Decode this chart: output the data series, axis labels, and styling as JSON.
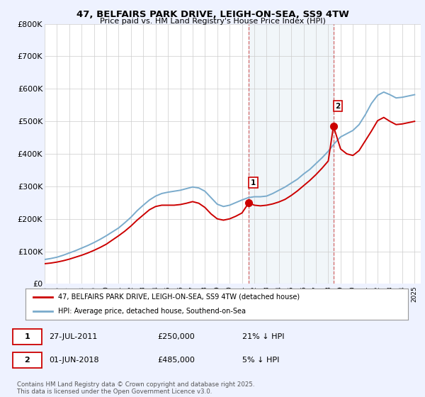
{
  "title": "47, BELFAIRS PARK DRIVE, LEIGH-ON-SEA, SS9 4TW",
  "subtitle": "Price paid vs. HM Land Registry's House Price Index (HPI)",
  "ylim": [
    0,
    800000
  ],
  "yticks": [
    0,
    100000,
    200000,
    300000,
    400000,
    500000,
    600000,
    700000,
    800000
  ],
  "ytick_labels": [
    "£0",
    "£100K",
    "£200K",
    "£300K",
    "£400K",
    "£500K",
    "£600K",
    "£700K",
    "£800K"
  ],
  "xlim_start": 1995.0,
  "xlim_end": 2025.5,
  "background_color": "#eef2ff",
  "plot_bg_color": "#ffffff",
  "sale1_year": 2011.57,
  "sale1_price": 250000,
  "sale2_year": 2018.42,
  "sale2_price": 485000,
  "vline1_x": 2011.57,
  "vline2_x": 2018.42,
  "red_color": "#cc0000",
  "blue_color": "#7aabcc",
  "legend_label_red": "47, BELFAIRS PARK DRIVE, LEIGH-ON-SEA, SS9 4TW (detached house)",
  "legend_label_blue": "HPI: Average price, detached house, Southend-on-Sea",
  "footnote": "Contains HM Land Registry data © Crown copyright and database right 2025.\nThis data is licensed under the Open Government Licence v3.0.",
  "hpi_years": [
    1995,
    1995.5,
    1996,
    1996.5,
    1997,
    1997.5,
    1998,
    1998.5,
    1999,
    1999.5,
    2000,
    2000.5,
    2001,
    2001.5,
    2002,
    2002.5,
    2003,
    2003.5,
    2004,
    2004.5,
    2005,
    2005.5,
    2006,
    2006.5,
    2007,
    2007.5,
    2008,
    2008.5,
    2009,
    2009.5,
    2010,
    2010.5,
    2011,
    2011.5,
    2012,
    2012.5,
    2013,
    2013.5,
    2014,
    2014.5,
    2015,
    2015.5,
    2016,
    2016.5,
    2017,
    2017.5,
    2018,
    2018.5,
    2019,
    2019.5,
    2020,
    2020.5,
    2021,
    2021.5,
    2022,
    2022.5,
    2023,
    2023.5,
    2024,
    2024.5,
    2025
  ],
  "hpi_values": [
    75000,
    78000,
    82000,
    88000,
    95000,
    102000,
    110000,
    118000,
    127000,
    137000,
    148000,
    160000,
    172000,
    188000,
    205000,
    225000,
    242000,
    258000,
    270000,
    278000,
    282000,
    285000,
    288000,
    293000,
    298000,
    295000,
    285000,
    265000,
    245000,
    238000,
    242000,
    250000,
    258000,
    265000,
    268000,
    268000,
    270000,
    278000,
    288000,
    298000,
    310000,
    322000,
    338000,
    352000,
    370000,
    388000,
    408000,
    432000,
    452000,
    462000,
    472000,
    490000,
    520000,
    555000,
    580000,
    590000,
    582000,
    572000,
    574000,
    578000,
    582000
  ],
  "price_years": [
    1995,
    1995.5,
    1996,
    1996.5,
    1997,
    1997.5,
    1998,
    1998.5,
    1999,
    1999.5,
    2000,
    2000.5,
    2001,
    2001.5,
    2002,
    2002.5,
    2003,
    2003.5,
    2004,
    2004.5,
    2005,
    2005.5,
    2006,
    2006.5,
    2007,
    2007.5,
    2008,
    2008.5,
    2009,
    2009.5,
    2010,
    2010.5,
    2011,
    2011.57,
    2012,
    2012.5,
    2013,
    2013.5,
    2014,
    2014.5,
    2015,
    2015.5,
    2016,
    2016.5,
    2017,
    2017.5,
    2018,
    2018.42,
    2019,
    2019.5,
    2020,
    2020.5,
    2021,
    2021.5,
    2022,
    2022.5,
    2023,
    2023.5,
    2024,
    2024.5,
    2025
  ],
  "price_values": [
    62000,
    64000,
    67000,
    71000,
    76000,
    82000,
    88000,
    95000,
    103000,
    112000,
    122000,
    135000,
    148000,
    162000,
    178000,
    196000,
    212000,
    228000,
    238000,
    242000,
    242000,
    242000,
    244000,
    248000,
    253000,
    248000,
    235000,
    215000,
    200000,
    196000,
    200000,
    208000,
    218000,
    250000,
    242000,
    240000,
    242000,
    246000,
    252000,
    260000,
    272000,
    286000,
    302000,
    318000,
    336000,
    356000,
    378000,
    485000,
    415000,
    400000,
    395000,
    410000,
    440000,
    470000,
    502000,
    512000,
    500000,
    490000,
    492000,
    496000,
    500000
  ]
}
